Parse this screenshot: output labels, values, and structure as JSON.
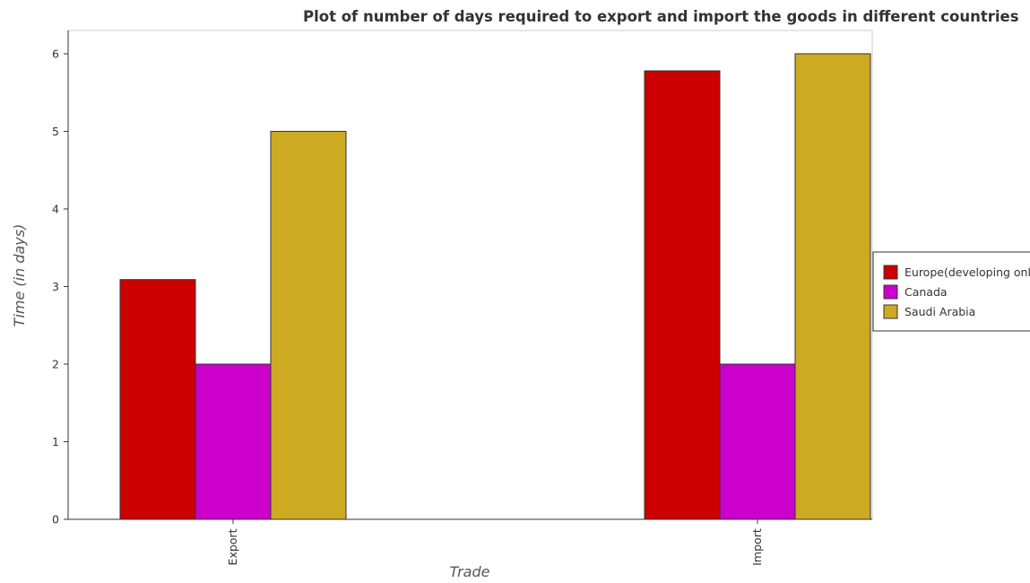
{
  "chart_data": {
    "type": "bar",
    "title": "Plot of number of days required to export and import the goods in different countries",
    "xlabel": "Trade",
    "ylabel": "Time (in days)",
    "categories": [
      "Export",
      "Import"
    ],
    "series": [
      {
        "name": "Europe(developing only)",
        "color": "#cc0000",
        "values": [
          3.09,
          5.78
        ]
      },
      {
        "name": "Canada",
        "color": "#cc00cc",
        "values": [
          2,
          2
        ]
      },
      {
        "name": "Saudi Arabia",
        "color": "#ccaa22",
        "values": [
          5,
          6
        ]
      }
    ],
    "ylim": [
      0,
      6.3
    ],
    "yticks": [
      "0",
      "1",
      "2",
      "3",
      "4",
      "5",
      "6"
    ],
    "grid": false,
    "legend_position": "right"
  }
}
